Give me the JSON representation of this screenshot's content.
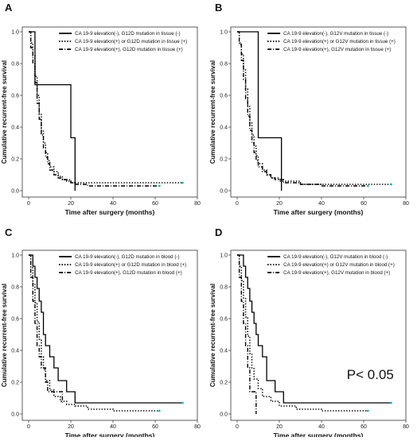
{
  "chart_data": [
    {
      "panel": "A",
      "type": "line",
      "xlabel": "Time after surgery (months)",
      "ylabel": "Cumulative recurrent-free survival",
      "xlim": [
        0,
        80
      ],
      "ylim": [
        0,
        1
      ],
      "x_ticks": [
        "0",
        "20",
        "40",
        "60",
        "80"
      ],
      "y_ticks": [
        "0.0",
        "0.2",
        "0.4",
        "0.6",
        "0.8",
        "1.0"
      ],
      "series": [
        {
          "name": "CA 19-9 elevation(-), G12D mutation in tissue (-)",
          "style": "solid",
          "x": [
            0,
            3,
            20,
            22,
            22
          ],
          "y": [
            1.0,
            0.667,
            0.333,
            0.333,
            0.0
          ]
        },
        {
          "name": "CA 19-9 elevation(+) or G12D mutation in tissue (+)",
          "style": "dotted",
          "x": [
            0,
            1,
            2,
            3,
            4,
            5,
            6,
            7,
            8,
            9,
            10,
            12,
            14,
            16,
            18,
            20,
            22,
            73
          ],
          "y": [
            1.0,
            0.93,
            0.85,
            0.72,
            0.6,
            0.48,
            0.38,
            0.3,
            0.24,
            0.19,
            0.15,
            0.12,
            0.09,
            0.07,
            0.06,
            0.05,
            0.05,
            0.05
          ]
        },
        {
          "name": "CA 19-9 elevation(+), G12D mutation in tissue (+)",
          "style": "dashdot",
          "x": [
            0,
            1,
            2,
            3,
            4,
            5,
            6,
            7,
            8,
            9,
            10,
            12,
            14,
            16,
            20,
            22,
            28,
            40,
            62
          ],
          "y": [
            1.0,
            0.9,
            0.8,
            0.68,
            0.55,
            0.45,
            0.35,
            0.27,
            0.21,
            0.17,
            0.13,
            0.1,
            0.08,
            0.07,
            0.05,
            0.04,
            0.03,
            0.03,
            0.03
          ]
        }
      ]
    },
    {
      "panel": "B",
      "type": "line",
      "xlabel": "Time after surgery (months)",
      "ylabel": "Cumulative recurrent-free survival",
      "xlim": [
        0,
        80
      ],
      "ylim": [
        0,
        1
      ],
      "x_ticks": [
        "0",
        "20",
        "40",
        "60",
        "80"
      ],
      "y_ticks": [
        "0.0",
        "0.2",
        "0.4",
        "0.6",
        "0.8",
        "1.0"
      ],
      "series": [
        {
          "name": "CA 19-9 elevation(-), G12V mutation in tissue (-)",
          "style": "solid",
          "x": [
            0,
            10,
            21,
            21
          ],
          "y": [
            1.0,
            0.333,
            0.333,
            0.0
          ]
        },
        {
          "name": "CA 19-9 elevation(+) or G12V mutation in tissue (+)",
          "style": "dotted",
          "x": [
            0,
            1,
            2,
            3,
            4,
            5,
            6,
            7,
            8,
            9,
            10,
            12,
            14,
            16,
            20,
            30,
            73
          ],
          "y": [
            1.0,
            0.93,
            0.86,
            0.76,
            0.64,
            0.53,
            0.43,
            0.35,
            0.28,
            0.22,
            0.17,
            0.13,
            0.1,
            0.08,
            0.06,
            0.04,
            0.04
          ]
        },
        {
          "name": "CA 19-9 elevation(+), G12V mutation in tissue (+)",
          "style": "dashdot",
          "x": [
            0,
            1,
            2,
            3,
            4,
            5,
            6,
            7,
            8,
            9,
            10,
            12,
            14,
            16,
            18,
            22,
            30,
            40,
            62
          ],
          "y": [
            1.0,
            0.92,
            0.82,
            0.7,
            0.58,
            0.47,
            0.38,
            0.3,
            0.24,
            0.19,
            0.15,
            0.12,
            0.1,
            0.08,
            0.07,
            0.05,
            0.04,
            0.03,
            0.03
          ]
        }
      ]
    },
    {
      "panel": "C",
      "type": "line",
      "xlabel": "Time after surgery (months)",
      "ylabel": "Cumulative recurrent-free survival",
      "xlim": [
        0,
        80
      ],
      "ylim": [
        0,
        1
      ],
      "x_ticks": [
        "0",
        "20",
        "40",
        "60",
        "80"
      ],
      "y_ticks": [
        "0.0",
        "0.2",
        "0.4",
        "0.6",
        "0.8",
        "1.0"
      ],
      "series": [
        {
          "name": "CA 19-9 elevation(-), G12D mutation in blood (-)",
          "style": "solid",
          "x": [
            0,
            2,
            3,
            4,
            5,
            6,
            7,
            8,
            10,
            12,
            14,
            18,
            22,
            73
          ],
          "y": [
            1.0,
            0.93,
            0.86,
            0.79,
            0.71,
            0.64,
            0.5,
            0.43,
            0.36,
            0.29,
            0.21,
            0.14,
            0.07,
            0.07
          ]
        },
        {
          "name": "CA 19-9 elevation(+) or G12D mutation in blood (+)",
          "style": "dotted",
          "x": [
            0,
            1,
            2,
            3,
            4,
            5,
            6,
            7,
            8,
            10,
            12,
            15,
            18,
            22,
            28,
            40,
            62
          ],
          "y": [
            1.0,
            0.92,
            0.82,
            0.7,
            0.58,
            0.47,
            0.36,
            0.28,
            0.21,
            0.15,
            0.11,
            0.08,
            0.06,
            0.05,
            0.03,
            0.02,
            0.02
          ]
        },
        {
          "name": "CA 19-9 elevation(+), G12D mutation in blood (+)",
          "style": "dashdot",
          "x": [
            0,
            1,
            2,
            3,
            4,
            5,
            6,
            8,
            9,
            10,
            12,
            16,
            16
          ],
          "y": [
            1.0,
            0.86,
            0.71,
            0.57,
            0.43,
            0.36,
            0.29,
            0.2,
            0.14,
            0.14,
            0.14,
            0.07,
            0.07
          ]
        }
      ]
    },
    {
      "panel": "D",
      "type": "line",
      "xlabel": "Time after surgery (months)",
      "ylabel": "Cumulative recurrent-free survival",
      "xlim": [
        0,
        80
      ],
      "ylim": [
        0,
        1
      ],
      "x_ticks": [
        "0",
        "20",
        "40",
        "60",
        "80"
      ],
      "y_ticks": [
        "0.0",
        "0.2",
        "0.4",
        "0.6",
        "0.8",
        "1.0"
      ],
      "annotation": "P< 0.05",
      "series": [
        {
          "name": "CA 19-9 elevation(-), G12V mutation in blood (-)",
          "style": "solid",
          "x": [
            0,
            3,
            4,
            5,
            6,
            7,
            8,
            9,
            10,
            12,
            14,
            18,
            22,
            73
          ],
          "y": [
            1.0,
            0.93,
            0.86,
            0.79,
            0.71,
            0.64,
            0.57,
            0.5,
            0.43,
            0.36,
            0.21,
            0.14,
            0.07,
            0.07
          ]
        },
        {
          "name": "CA 19-9 elevation(+) or G12V mutation in blood (+)",
          "style": "dotted",
          "x": [
            0,
            1,
            2,
            3,
            4,
            5,
            6,
            7,
            8,
            10,
            12,
            16,
            20,
            28,
            40,
            62
          ],
          "y": [
            1.0,
            0.93,
            0.84,
            0.73,
            0.61,
            0.49,
            0.38,
            0.29,
            0.22,
            0.16,
            0.11,
            0.08,
            0.05,
            0.03,
            0.02,
            0.02
          ]
        },
        {
          "name": "CA 19-9 elevation(+), G12V mutation in blood (+)",
          "style": "dashdot",
          "x": [
            0,
            1,
            2,
            3,
            4,
            5,
            6,
            7,
            8,
            9,
            9
          ],
          "y": [
            1.0,
            0.86,
            0.71,
            0.57,
            0.43,
            0.29,
            0.14,
            0.14,
            0.14,
            0.14,
            0.0
          ]
        }
      ]
    }
  ]
}
